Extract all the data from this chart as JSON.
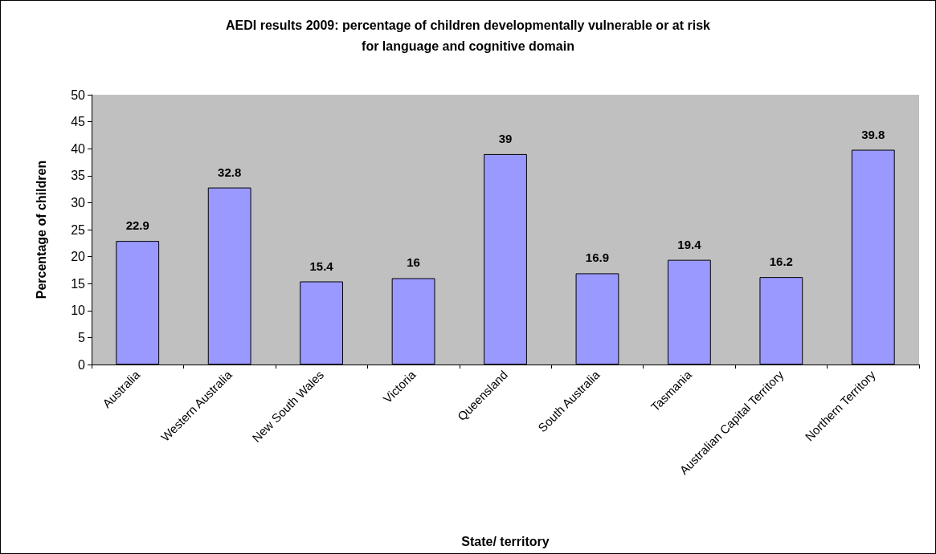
{
  "chart_data": {
    "type": "bar",
    "title": "AEDI results 2009: percentage of children developmentally vulnerable or at risk\nfor language and cognitive domain",
    "xlabel": "State/ territory",
    "ylabel": "Percentage of children",
    "categories": [
      "Australia",
      "Western Australia",
      "New South Wales",
      "Victoria",
      "Queensland",
      "South Australia",
      "Tasmania",
      "Australian Capital Territory",
      "Northern Territory"
    ],
    "values": [
      22.9,
      32.8,
      15.4,
      16,
      39,
      16.9,
      19.4,
      16.2,
      39.8
    ],
    "color": "#9999ff",
    "ylim": [
      0,
      50
    ],
    "yticks": [
      0,
      5,
      10,
      15,
      20,
      25,
      30,
      35,
      40,
      45,
      50
    ],
    "grid": false,
    "data_labels": true
  }
}
